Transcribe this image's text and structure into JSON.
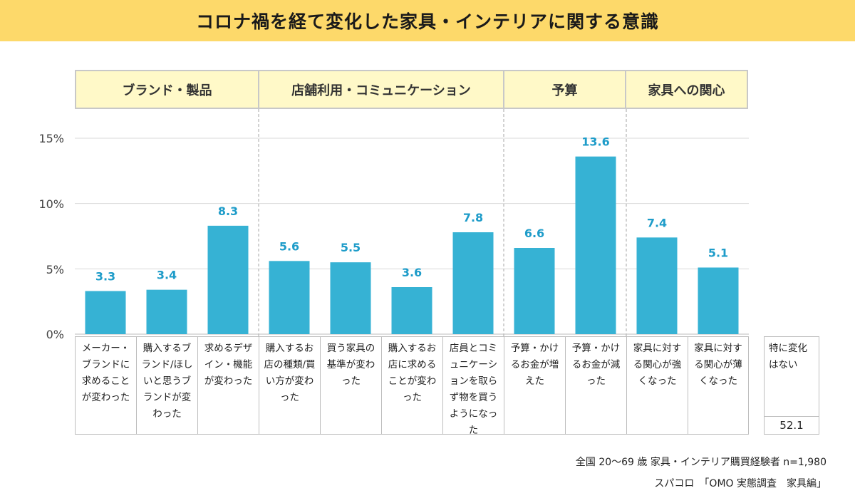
{
  "title": "コロナ禍を経て変化した家具・インテリアに関する意識",
  "categories_header": [
    {
      "label": "ブランド・製品",
      "span": 3
    },
    {
      "label": "店舗利用・コミュニケーション",
      "span": 4
    },
    {
      "label": "予算",
      "span": 2
    },
    {
      "label": "家具への関心",
      "span": 2
    }
  ],
  "chart_data": {
    "type": "bar",
    "title": "コロナ禍を経て変化した家具・インテリアに関する意識",
    "ylim": [
      0,
      15
    ],
    "yticks": [
      "0%",
      "5%",
      "10%",
      "15%"
    ],
    "ytick_values": [
      0,
      5,
      10,
      15
    ],
    "categories": [
      "メーカー・ブランドに求めることが変わった",
      "購入するブランド/ほしいと思うブランドが変わった",
      "求めるデザイン・機能が変わった",
      "購入するお店の種類/買い方が変わった",
      "買う家具の基準が変わった",
      "購入するお店に求めることが変わった",
      "店員とコミュニケーションを取らず物を買うようになった",
      "予算・かけるお金が増えた",
      "予算・かけるお金が減った",
      "家具に対する関心が強くなった",
      "家具に対する関心が薄くなった"
    ],
    "values": [
      3.3,
      3.4,
      8.3,
      5.6,
      5.5,
      3.6,
      7.8,
      6.6,
      13.6,
      7.4,
      5.1
    ],
    "value_labels": [
      "3.3",
      "3.4",
      "8.3",
      "5.6",
      "5.5",
      "3.6",
      "7.8",
      "6.6",
      "13.6",
      "7.4",
      "5.1"
    ],
    "bar_color": "#36b2d4",
    "label_color": "#1e9cc9",
    "extra_category": {
      "label": "特に変化はない",
      "value": "52.1"
    }
  },
  "notes": {
    "sample": "全国 20～69 歳 家具・インテリア購買経験者 n=1,980",
    "source": "スパコロ　「OMO 実態調査　家具編」"
  },
  "colors": {
    "title_bg": "#fdd96a",
    "header_bg": "#fff9c8",
    "grid": "#d9d9d9",
    "border": "#bdbdbd"
  }
}
